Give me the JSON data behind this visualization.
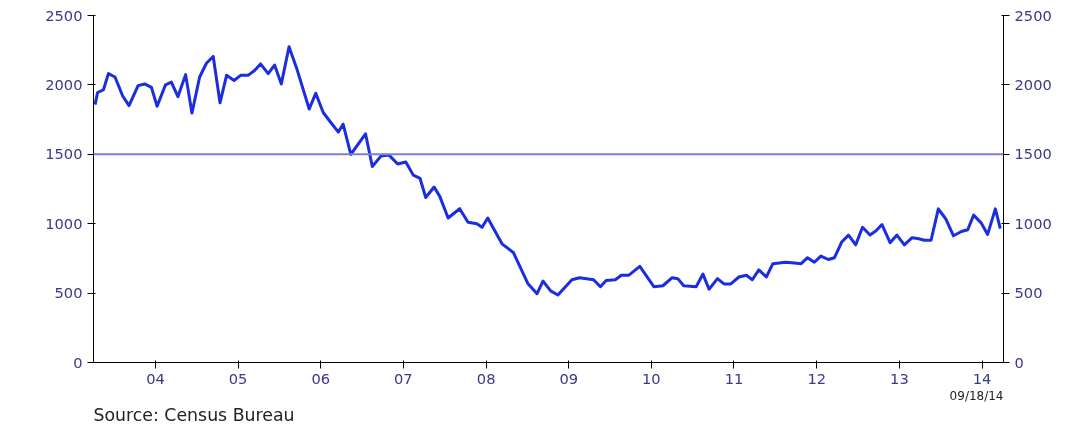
{
  "chart_data": {
    "type": "line",
    "x": [
      "2003-10-08",
      "2003-10-19",
      "2003-11-14",
      "2003-12-06",
      "2004-01-04",
      "2004-02-07",
      "2004-03-06",
      "2004-04-15",
      "2004-05-14",
      "2004-06-13",
      "2004-07-08",
      "2004-08-14",
      "2004-09-09",
      "2004-10-08",
      "2004-11-11",
      "2004-12-09",
      "2005-01-12",
      "2005-02-11",
      "2005-03-13",
      "2005-04-12",
      "2005-05-11",
      "2005-06-13",
      "2005-07-12",
      "2005-08-14",
      "2005-09-13",
      "2005-10-08",
      "2005-11-11",
      "2005-12-09",
      "2006-01-08",
      "2006-02-11",
      "2006-03-17",
      "2006-05-11",
      "2006-06-09",
      "2006-07-12",
      "2006-08-18",
      "2006-09-17",
      "2006-10-08",
      "2006-11-11",
      "2007-01-15",
      "2007-02-14",
      "2007-03-24",
      "2007-04-29",
      "2007-06-06",
      "2007-07-12",
      "2007-08-14",
      "2007-09-13",
      "2007-10-08",
      "2007-11-14",
      "2007-12-09",
      "2008-01-15",
      "2008-03-06",
      "2008-04-12",
      "2008-05-21",
      "2008-06-13",
      "2008-07-08",
      "2008-09-09",
      "2008-10-29",
      "2009-01-01",
      "2009-02-11",
      "2009-03-09",
      "2009-04-12",
      "2009-05-14",
      "2009-07-15",
      "2009-08-18",
      "2009-10-19",
      "2009-11-18",
      "2009-12-13",
      "2010-01-23",
      "2010-02-18",
      "2010-03-24",
      "2010-05-11",
      "2010-07-12",
      "2010-08-21",
      "2010-10-01",
      "2010-10-26",
      "2010-11-21",
      "2011-01-15",
      "2011-02-14",
      "2011-03-13",
      "2011-04-19",
      "2011-05-18",
      "2011-06-17",
      "2011-07-23",
      "2011-08-25",
      "2011-09-20",
      "2011-10-19",
      "2011-11-21",
      "2011-12-20",
      "2012-02-14",
      "2012-03-24",
      "2012-04-23",
      "2012-05-21",
      "2012-06-20",
      "2012-07-19",
      "2012-08-21",
      "2012-09-17",
      "2012-10-19",
      "2012-11-18",
      "2012-12-20",
      "2013-01-19",
      "2013-02-21",
      "2013-03-20",
      "2013-04-15",
      "2013-05-21",
      "2013-06-20",
      "2013-07-23",
      "2013-08-25",
      "2013-09-20",
      "2013-10-19",
      "2013-11-18",
      "2013-12-20",
      "2014-01-23",
      "2014-02-25",
      "2014-04-01",
      "2014-04-29",
      "2014-05-25",
      "2014-06-27",
      "2014-07-26",
      "2014-08-29",
      "2014-09-20"
    ],
    "series": [
      {
        "color": "#1a2ee0",
        "values": [
          1858,
          1945,
          1965,
          2081,
          2057,
          1920,
          1851,
          1995,
          2007,
          1982,
          1846,
          2000,
          2020,
          1915,
          2074,
          1797,
          2057,
          2156,
          2205,
          1871,
          2069,
          2032,
          2069,
          2069,
          2106,
          2151,
          2081,
          2143,
          2007,
          2275,
          2119,
          1826,
          1940,
          1801,
          1722,
          1660,
          1717,
          1499,
          1648,
          1412,
          1487,
          1494,
          1430,
          1445,
          1350,
          1326,
          1189,
          1264,
          1197,
          1041,
          1108,
          1011,
          999,
          974,
          1041,
          855,
          793,
          570,
          496,
          587,
          516,
          486,
          596,
          611,
          596,
          546,
          591,
          596,
          629,
          629,
          692,
          546,
          553,
          611,
          604,
          553,
          546,
          637,
          528,
          604,
          566,
          566,
          616,
          629,
          596,
          667,
          616,
          712,
          722,
          717,
          712,
          755,
          722,
          767,
          742,
          755,
          868,
          918,
          848,
          974,
          918,
          949,
          994,
          863,
          918,
          848,
          898,
          893,
          881,
          881,
          1107,
          1032,
          913,
          944,
          956,
          1062,
          1006,
          923,
          1107,
          964
        ]
      }
    ],
    "xlim": [
      "2003-10-01",
      "2014-10-04"
    ],
    "xticks": [
      {
        "value": "2004-07-01",
        "label": "04"
      },
      {
        "value": "2005-07-01",
        "label": "05"
      },
      {
        "value": "2006-07-01",
        "label": "06"
      },
      {
        "value": "2007-07-01",
        "label": "07"
      },
      {
        "value": "2008-07-01",
        "label": "08"
      },
      {
        "value": "2009-07-01",
        "label": "09"
      },
      {
        "value": "2010-07-01",
        "label": "10"
      },
      {
        "value": "2011-07-01",
        "label": "11"
      },
      {
        "value": "2012-07-01",
        "label": "12"
      },
      {
        "value": "2013-07-01",
        "label": "13"
      },
      {
        "value": "2014-07-01",
        "label": "14"
      }
    ],
    "ylim": [
      0,
      2500
    ],
    "yticks": [
      0,
      500,
      1000,
      1500,
      2000,
      2500
    ],
    "y2lim": [
      0,
      2500
    ],
    "y2ticks": [
      0,
      500,
      1000,
      1500,
      2000,
      2500
    ],
    "ref_lines": [
      {
        "axis": "y",
        "value": 1500,
        "color": "#7b7be6"
      }
    ],
    "annotations": [
      "Source:  Census Bureau",
      "09/18/14"
    ],
    "grid": false,
    "marker": "none",
    "line_style": "solid"
  }
}
